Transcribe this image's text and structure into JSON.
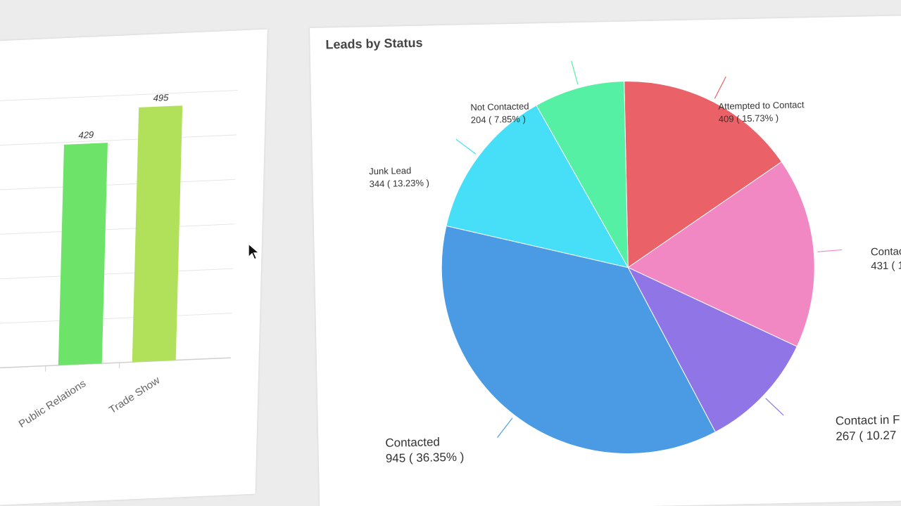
{
  "chart_data": [
    {
      "type": "bar",
      "categories": [
        "Public Relations",
        "Trade Show"
      ],
      "values": [
        429,
        495
      ],
      "partial_value_label": "1",
      "colors": [
        "#6ee36a",
        "#b1e05a"
      ]
    },
    {
      "type": "pie",
      "title": "Leads by Status",
      "slices": [
        {
          "label": "Attempted to Contact",
          "value": 409,
          "pct": "15.73%",
          "value_text": "409 ( 15.73% )",
          "color": "#ea6168"
        },
        {
          "label": "Contac",
          "value": 431,
          "pct": "",
          "value_text": "431 ( 1",
          "color": "#f188c4"
        },
        {
          "label": "Contact in F",
          "value": 267,
          "pct": "10.27",
          "value_text": "267 ( 10.27",
          "color": "#9075e6"
        },
        {
          "label": "Contacted",
          "value": 945,
          "pct": "36.35%",
          "value_text": "945 ( 36.35% )",
          "color": "#4a9be4"
        },
        {
          "label": "Junk Lead",
          "value": 344,
          "pct": "13.23%",
          "value_text": "344 ( 13.23% )",
          "color": "#47dff8"
        },
        {
          "label": "Not Contacted",
          "value": 204,
          "pct": "7.85%",
          "value_text": "204 ( 7.85% )",
          "color": "#56f0a4"
        }
      ]
    }
  ]
}
